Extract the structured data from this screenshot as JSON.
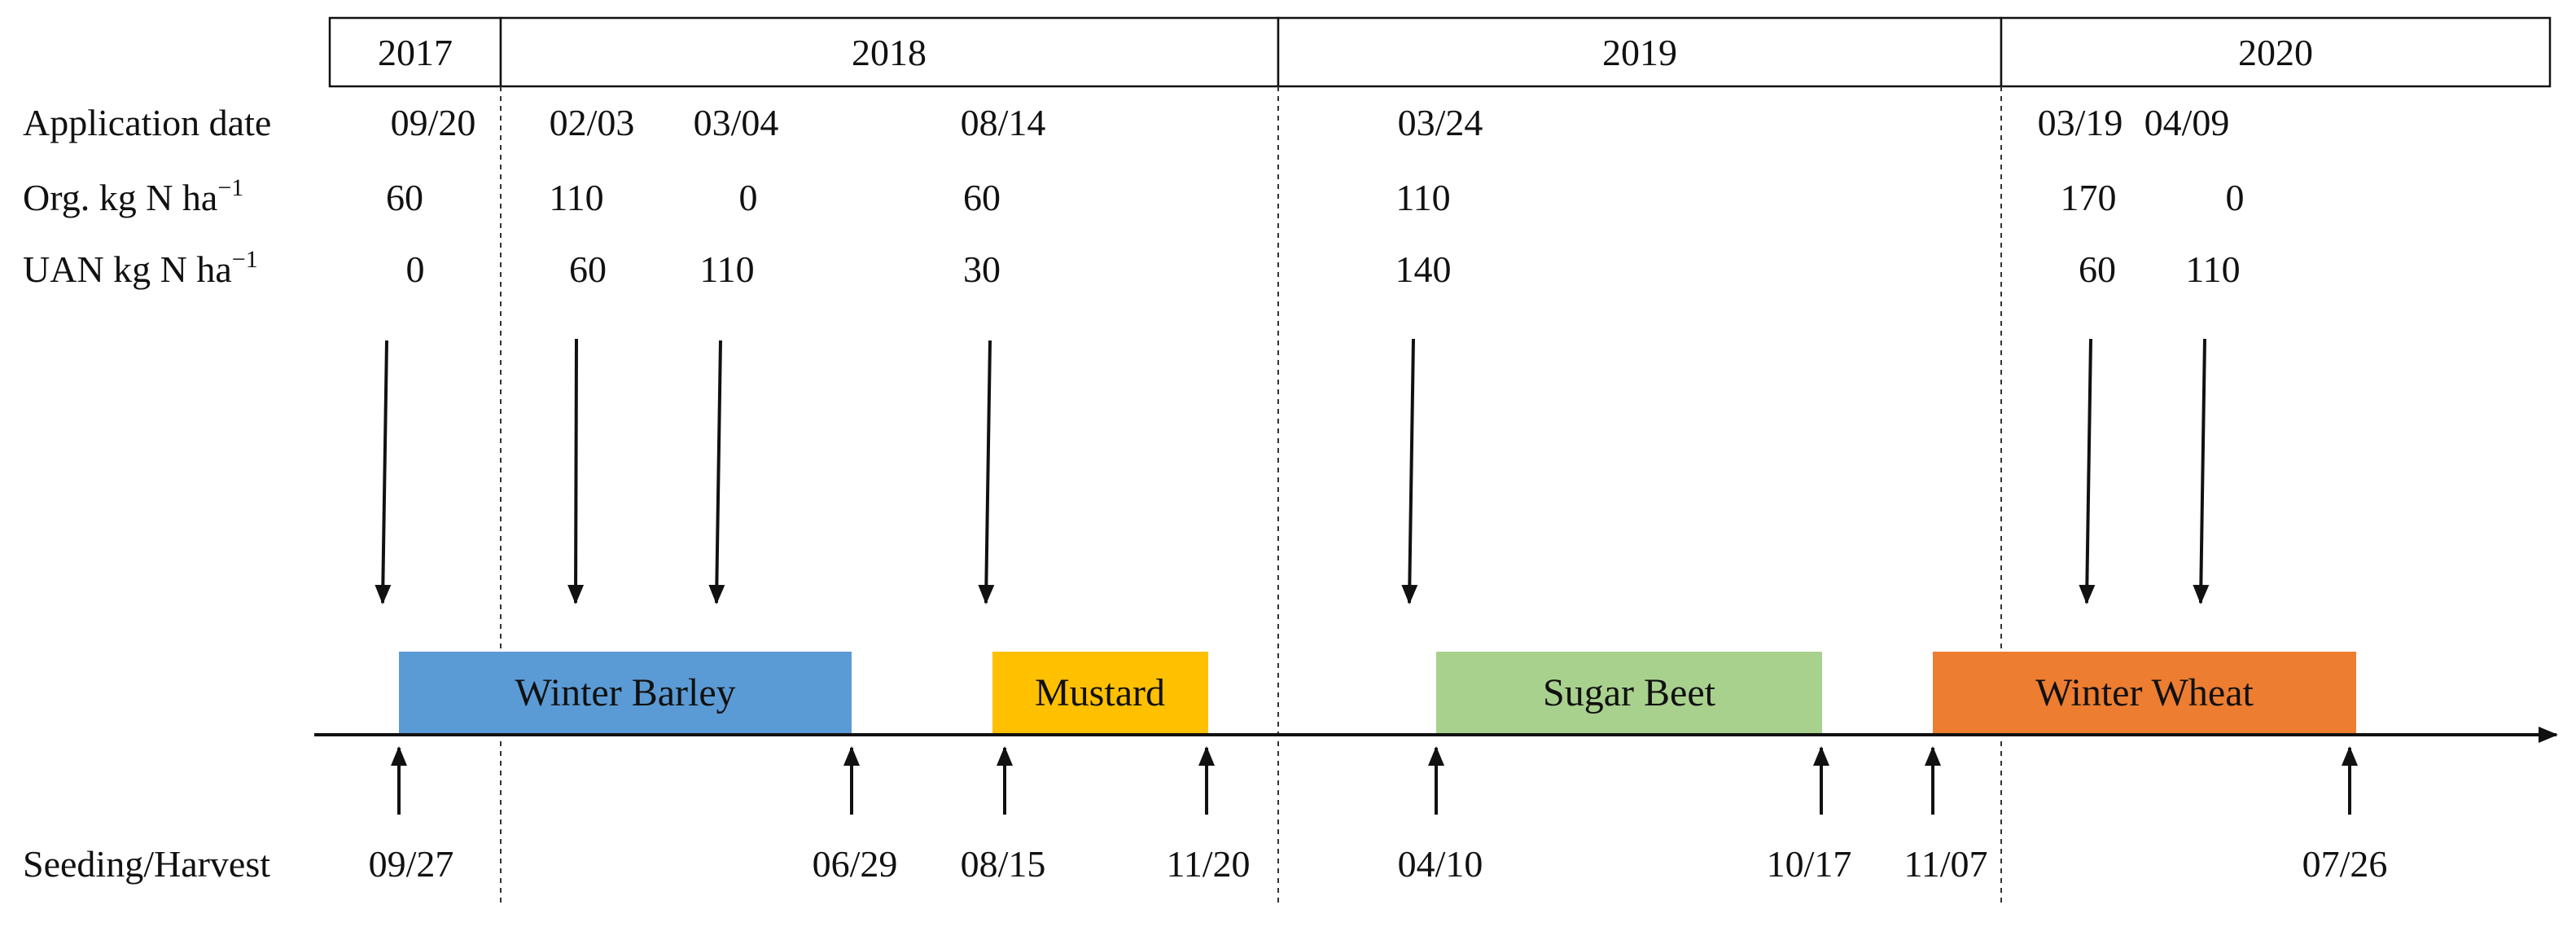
{
  "years": [
    "2017",
    "2018",
    "2019",
    "2020"
  ],
  "row_labels": {
    "application_date": "Application date",
    "org_prefix": "Org. kg N ha",
    "uan_prefix": "UAN kg N ha",
    "superscript": "−1",
    "seeding_harvest": "Seeding/Harvest"
  },
  "applications": [
    {
      "date": "09/20",
      "org": "60",
      "uan": "0"
    },
    {
      "date": "02/03",
      "org": "110",
      "uan": "60"
    },
    {
      "date": "03/04",
      "org": "0",
      "uan": "110"
    },
    {
      "date": "08/14",
      "org": "60",
      "uan": "30"
    },
    {
      "date": "03/24",
      "org": "110",
      "uan": "140"
    },
    {
      "date": "03/19",
      "org": "170",
      "uan": "60"
    },
    {
      "date": "04/09",
      "org": "0",
      "uan": "110"
    }
  ],
  "crops": [
    {
      "name": "Winter Barley",
      "color": "#5b9bd5"
    },
    {
      "name": "Mustard",
      "color": "#ffc000"
    },
    {
      "name": "Sugar Beet",
      "color": "#a9d18e"
    },
    {
      "name": "Winter Wheat",
      "color": "#ed7d31"
    }
  ],
  "seeding_harvest_dates": [
    "09/27",
    "06/29",
    "08/15",
    "11/20",
    "04/10",
    "10/17",
    "11/07",
    "07/26"
  ]
}
